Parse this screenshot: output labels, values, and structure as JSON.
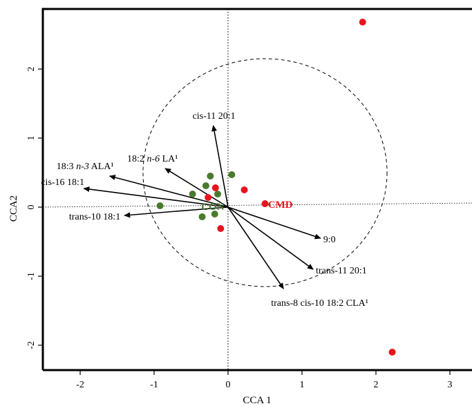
{
  "chart_data": {
    "type": "scatter",
    "title": "",
    "xlabel": "CCA 1",
    "ylabel": "CCA2",
    "xlim": [
      -2.4,
      3.3
    ],
    "ylim": [
      -2.45,
      2.9
    ],
    "x_ticks": [
      "-2",
      "-1",
      "0",
      "1",
      "2",
      "3"
    ],
    "y_ticks": [
      "-2",
      "-1",
      "0",
      "1",
      "2"
    ],
    "grid": false,
    "reference_lines": {
      "x": 0,
      "y": 0
    },
    "correlation_circle_radius": 1.65,
    "series": [
      {
        "name": "CON",
        "color": "#4a7a2c",
        "points": [
          {
            "x": -0.92,
            "y": 0.02
          },
          {
            "x": -0.48,
            "y": 0.19
          },
          {
            "x": -0.3,
            "y": 0.31
          },
          {
            "x": -0.24,
            "y": 0.45
          },
          {
            "x": -0.14,
            "y": 0.19
          },
          {
            "x": 0.05,
            "y": 0.47
          },
          {
            "x": -0.35,
            "y": -0.14
          },
          {
            "x": -0.18,
            "y": -0.1
          }
        ]
      },
      {
        "name": "CMD",
        "color": "#e8141b",
        "points": [
          {
            "x": 1.82,
            "y": 2.68
          },
          {
            "x": 2.22,
            "y": -2.1
          },
          {
            "x": 0.22,
            "y": 0.25
          },
          {
            "x": -0.17,
            "y": 0.28
          },
          {
            "x": -0.27,
            "y": 0.14
          },
          {
            "x": -0.1,
            "y": -0.31
          },
          {
            "x": 0.5,
            "y": 0.05
          }
        ]
      }
    ],
    "group_labels": [
      {
        "text": "CON",
        "x": -0.05,
        "y": 0.01,
        "color": "#4a7a2c"
      },
      {
        "text": "CMD",
        "x": 0.54,
        "y": 0.04,
        "color": "#e8141b"
      }
    ],
    "vectors": [
      {
        "name": "cis-11 20:1",
        "x": -0.2,
        "y": 1.18
      },
      {
        "name": "18:3 n-3 ALA¹",
        "x": -1.6,
        "y": 0.45
      },
      {
        "name": "18:2 n-6 LA¹",
        "x": -0.85,
        "y": 0.56
      },
      {
        "name": "cis-16 18:1",
        "x": -1.95,
        "y": 0.27
      },
      {
        "name": "trans-10 18:1",
        "x": -1.4,
        "y": -0.12
      },
      {
        "name": "9:0",
        "x": 1.25,
        "y": -0.45
      },
      {
        "name": "trans-11 20:1",
        "x": 1.15,
        "y": -0.9
      },
      {
        "name": "trans-8 cis-10 18:2 CLA¹",
        "x": 0.75,
        "y": -1.18
      }
    ]
  }
}
